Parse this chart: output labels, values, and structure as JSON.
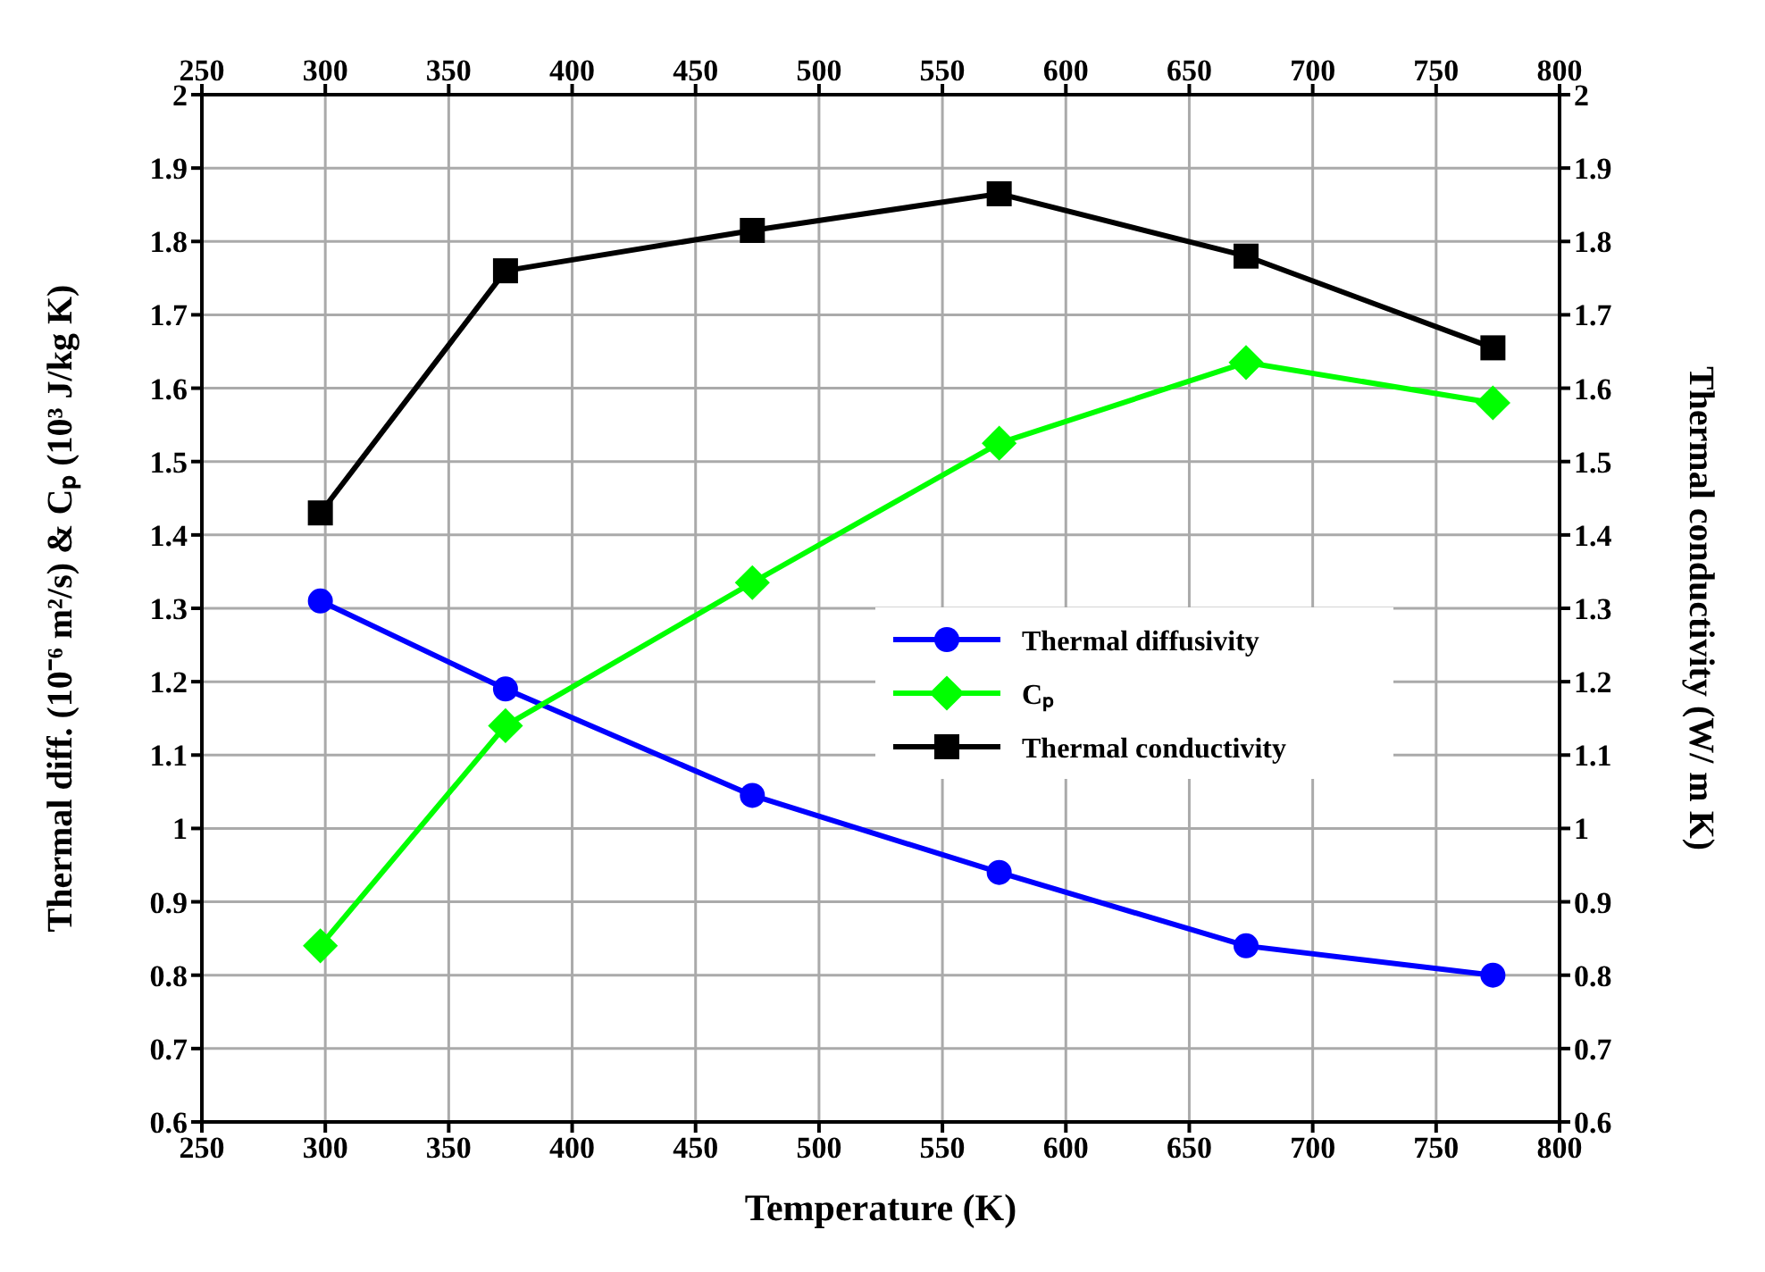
{
  "chart_data": {
    "type": "line",
    "xlabel": "Temperature (K)",
    "ylabel": "Thermal diff. (10⁻⁶ m²/s) & Cₚ (10³ J/kg K)",
    "y2label": "Thermal conductivity (W/ m K)",
    "x": [
      298,
      373,
      473,
      573,
      673,
      773
    ],
    "series": [
      {
        "name": "Thermal diffusivity",
        "color": "#0000ff",
        "marker": "circle",
        "values": [
          1.31,
          1.19,
          1.045,
          0.94,
          0.84,
          0.8
        ]
      },
      {
        "name": "Cₚ",
        "color": "#00ff00",
        "marker": "diamond",
        "values": [
          0.84,
          1.14,
          1.335,
          1.525,
          1.635,
          1.58
        ]
      },
      {
        "name": "Thermal conductivity",
        "color": "#000000",
        "marker": "square",
        "axis": "y2",
        "values": [
          1.43,
          1.76,
          1.815,
          1.865,
          1.78,
          1.655
        ]
      }
    ],
    "xlim": [
      250,
      800
    ],
    "xticks": [
      250,
      300,
      350,
      400,
      450,
      500,
      550,
      600,
      650,
      700,
      750,
      800
    ],
    "x2lim": [
      250,
      800
    ],
    "x2ticks": [
      250,
      300,
      350,
      400,
      450,
      500,
      550,
      600,
      650,
      700,
      750,
      800
    ],
    "ylim": [
      0.6,
      2
    ],
    "yticks": [
      0.6,
      0.7,
      0.8,
      0.9,
      1,
      1.1,
      1.2,
      1.3,
      1.4,
      1.5,
      1.6,
      1.7,
      1.8,
      1.9,
      2
    ],
    "y2lim": [
      0.6,
      2
    ],
    "y2ticks": [
      0.6,
      0.7,
      0.8,
      0.9,
      1,
      1.1,
      1.2,
      1.3,
      1.4,
      1.5,
      1.6,
      1.7,
      1.8,
      1.9,
      2
    ],
    "grid": true,
    "legend": "right",
    "line_style": "solid"
  }
}
